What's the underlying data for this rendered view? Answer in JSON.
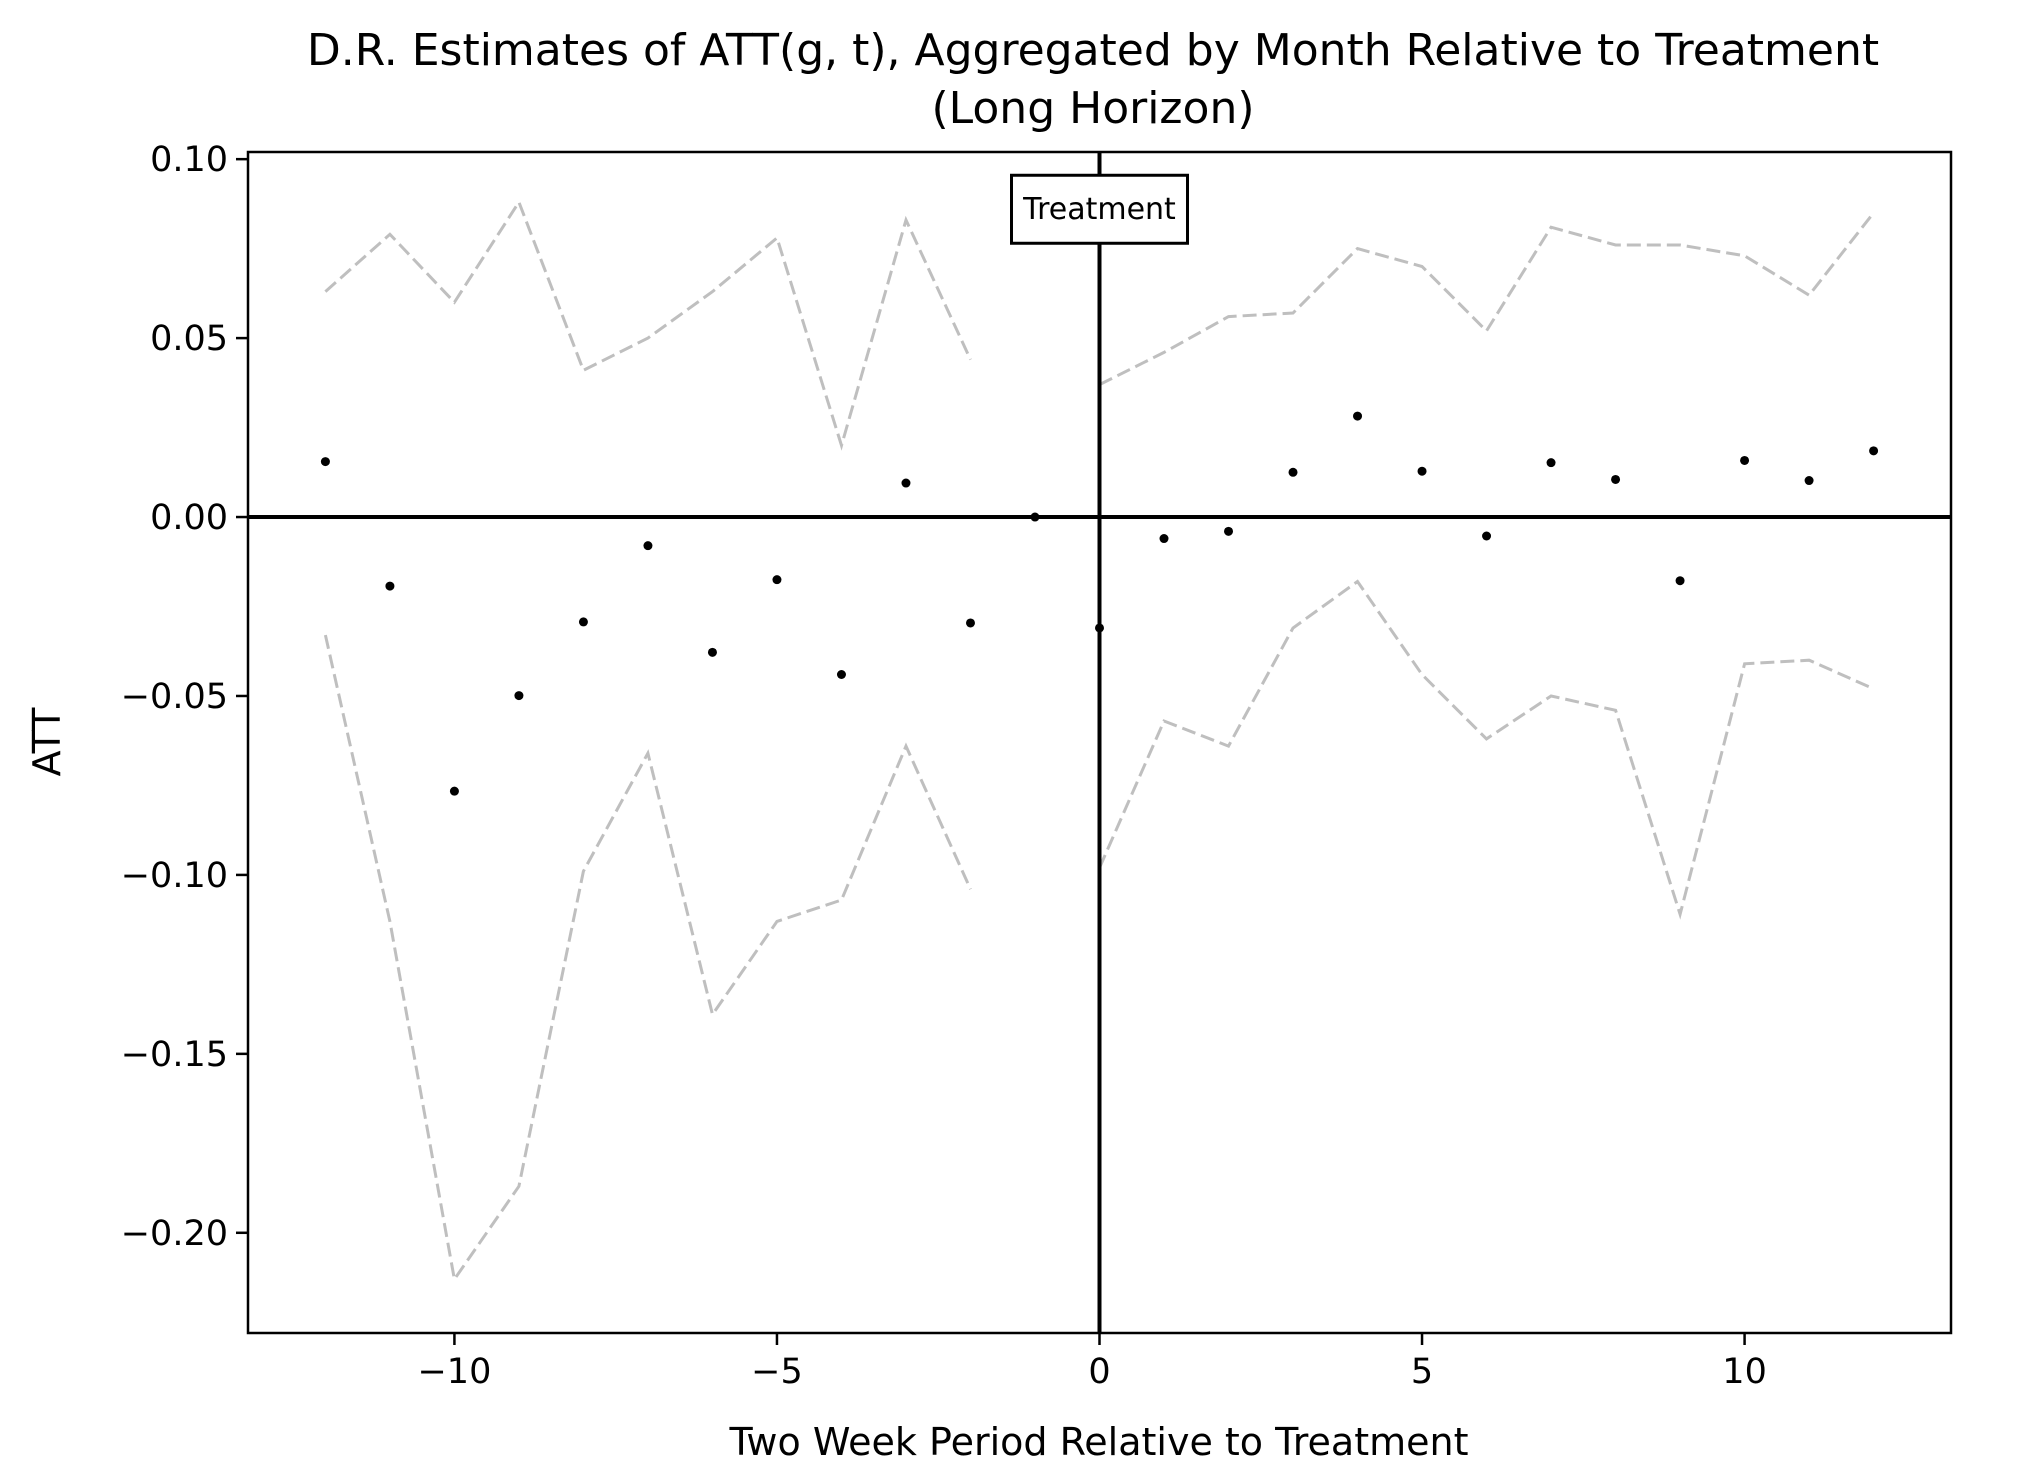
{
  "chart_data": {
    "type": "scatter",
    "title": "D.R. Estimates of ATT(g, t), Aggregated by Month Relative to Treatment",
    "subtitle": "(Long Horizon)",
    "xlabel": "Two Week Period Relative to Treatment",
    "ylabel": "ATT",
    "xlim": [
      -13.2,
      13.2
    ],
    "ylim": [
      -0.228,
      0.102
    ],
    "xticks": [
      -10,
      -5,
      0,
      5,
      10
    ],
    "xtick_labels": [
      "−10",
      "−5",
      "0",
      "5",
      "10"
    ],
    "yticks": [
      0.1,
      0.05,
      0.0,
      -0.05,
      -0.1,
      -0.15,
      -0.2
    ],
    "ytick_labels": [
      "0.10",
      "0.05",
      "0.00",
      "−0.05",
      "−0.10",
      "−0.15",
      "−0.20"
    ],
    "grid": false,
    "annotation": {
      "text": "Treatment",
      "x": 0,
      "y": 0.086
    },
    "reference_lines": {
      "vertical_x": 0,
      "horizontal_y": 0
    },
    "colors": {
      "points": "#000000",
      "ci": "#bfbfbf",
      "reference": "#000000"
    },
    "points": {
      "name": "ATT",
      "x": [
        -12,
        -11,
        -10,
        -9,
        -8,
        -7,
        -6,
        -5,
        -4,
        -3,
        -2,
        -1,
        0,
        1,
        2,
        3,
        4,
        5,
        6,
        7,
        8,
        9,
        10,
        11,
        12
      ],
      "y": [
        0.0155,
        -0.0193,
        -0.0766,
        -0.0499,
        -0.0293,
        -0.008,
        -0.0378,
        -0.0175,
        -0.044,
        0.0095,
        -0.0296,
        0.0,
        -0.031,
        -0.006,
        -0.004,
        0.0125,
        0.0282,
        0.0128,
        -0.0053,
        0.0152,
        0.0105,
        -0.0178,
        0.0158,
        0.0102,
        0.0185
      ]
    },
    "ci_segments": [
      {
        "x": [
          -12,
          -11,
          -10,
          -9,
          -8,
          -7,
          -6,
          -5,
          -4,
          -3,
          -2
        ],
        "upper": [
          0.063,
          0.079,
          0.06,
          0.088,
          0.041,
          0.05,
          0.063,
          0.078,
          0.02,
          0.083,
          0.044
        ],
        "lower": [
          -0.033,
          -0.113,
          -0.213,
          -0.187,
          -0.099,
          -0.066,
          -0.139,
          -0.113,
          -0.107,
          -0.064,
          -0.104
        ]
      },
      {
        "x": [
          0,
          1,
          2,
          3,
          4,
          5,
          6,
          7,
          8,
          9,
          10,
          11,
          12
        ],
        "upper": [
          0.037,
          0.046,
          0.056,
          0.057,
          0.075,
          0.07,
          0.052,
          0.081,
          0.076,
          0.076,
          0.073,
          0.062,
          0.085
        ],
        "lower": [
          -0.098,
          -0.057,
          -0.064,
          -0.031,
          -0.018,
          -0.044,
          -0.062,
          -0.05,
          -0.054,
          -0.111,
          -0.041,
          -0.04,
          -0.048
        ]
      }
    ]
  }
}
